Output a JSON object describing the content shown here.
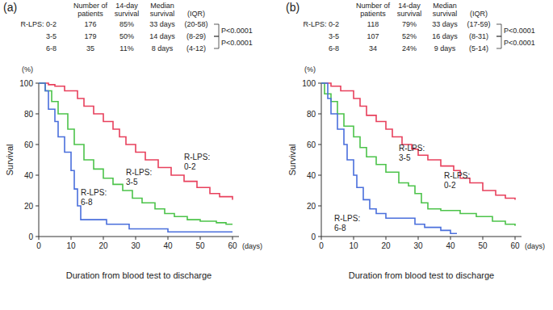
{
  "chart_data": [
    {
      "type": "line",
      "title": "(a)",
      "x_label": "Duration from blood test to discharge",
      "y_label": "Survival",
      "annotations": [
        "(%)",
        "(days)"
      ],
      "line_style": "step",
      "grid": false,
      "xlim": [
        0,
        62
      ],
      "ylim": [
        0,
        100
      ],
      "xticks": [
        0,
        10,
        20,
        30,
        40,
        50,
        60
      ],
      "yticks": [
        0,
        20,
        40,
        60,
        80,
        100
      ],
      "table": {
        "header": [
          "Number of patients",
          "14-day survival",
          "Median survival",
          "(IQR)"
        ],
        "rows": [
          [
            "R-LPS: 0-2",
            176,
            "85%",
            "33 days",
            "(20-58)"
          ],
          [
            "3-5",
            179,
            "50%",
            "14 days",
            "(8-29)"
          ],
          [
            "6-8",
            35,
            "11%",
            "8 days",
            "(4-12)"
          ]
        ],
        "p_values": [
          "P<0.0001",
          "P<0.0001"
        ]
      },
      "series": [
        {
          "name": "R-LPS: 0-2",
          "color": "#e8405c",
          "x": [
            0,
            3,
            5,
            8,
            12,
            14,
            17,
            20,
            23,
            25,
            27,
            30,
            33,
            37,
            41,
            45,
            49,
            53,
            56,
            60
          ],
          "values": [
            100,
            99,
            98,
            95,
            90,
            85,
            80,
            75,
            70,
            65,
            60,
            55,
            50,
            45,
            40,
            36,
            32,
            28,
            26,
            24
          ]
        },
        {
          "name": "R-LPS: 3-5",
          "color": "#4cc34a",
          "x": [
            0,
            2,
            4,
            6,
            9,
            11,
            14,
            17,
            20,
            23,
            26,
            29,
            32,
            36,
            39,
            42,
            46,
            50,
            55,
            58,
            60
          ],
          "values": [
            100,
            95,
            88,
            80,
            70,
            60,
            50,
            44,
            38,
            34,
            30,
            25,
            22,
            18,
            15,
            13,
            11,
            10,
            9,
            8,
            8
          ]
        },
        {
          "name": "R-LPS: 6-8",
          "color": "#4a6fdc",
          "x": [
            0,
            2,
            3,
            5,
            6,
            8,
            10,
            11,
            12,
            13,
            20,
            21,
            27,
            28,
            39,
            40,
            60
          ],
          "values": [
            100,
            95,
            83,
            75,
            65,
            55,
            43,
            31,
            20,
            11,
            11,
            8,
            8,
            5,
            5,
            3,
            3
          ]
        }
      ]
    },
    {
      "type": "line",
      "title": "(b)",
      "x_label": "Duration from blood test to discharge",
      "y_label": "Survival",
      "annotations": [
        "(%)",
        "(days)"
      ],
      "line_style": "step",
      "grid": false,
      "xlim": [
        0,
        62
      ],
      "ylim": [
        0,
        100
      ],
      "xticks": [
        0,
        10,
        20,
        30,
        40,
        50,
        60
      ],
      "yticks": [
        0,
        20,
        40,
        60,
        80,
        100
      ],
      "table": {
        "header": [
          "Number of patients",
          "14-day survival",
          "Median survival",
          "(IQR)"
        ],
        "rows": [
          [
            "R-LPS: 0-2",
            118,
            "79%",
            "33 days",
            "(17-59)"
          ],
          [
            "3-5",
            107,
            "52%",
            "16 days",
            "(8-31)"
          ],
          [
            "6-8",
            34,
            "24%",
            "9 days",
            "(5-14)"
          ]
        ],
        "p_values": [
          "P<0.0001",
          "P<0.0001"
        ]
      },
      "series": [
        {
          "name": "R-LPS: 0-2",
          "color": "#e8405c",
          "x": [
            0,
            3,
            6,
            10,
            12,
            14,
            17,
            20,
            22,
            25,
            28,
            30,
            33,
            37,
            41,
            43,
            46,
            50,
            54,
            57,
            60
          ],
          "values": [
            100,
            98,
            95,
            90,
            85,
            79,
            75,
            70,
            65,
            60,
            57,
            53,
            50,
            46,
            43,
            38,
            35,
            30,
            27,
            25,
            24
          ]
        },
        {
          "name": "R-LPS: 3-5",
          "color": "#4cc34a",
          "x": [
            0,
            1,
            3,
            5,
            7,
            10,
            12,
            14,
            17,
            20,
            24,
            27,
            29,
            31,
            33,
            37,
            43,
            48,
            53,
            57,
            60
          ],
          "values": [
            100,
            93,
            88,
            80,
            72,
            65,
            58,
            52,
            47,
            42,
            35,
            33,
            28,
            22,
            18,
            17,
            15,
            13,
            10,
            8,
            7
          ]
        },
        {
          "name": "R-LPS: 6-8",
          "color": "#4a6fdc",
          "x": [
            0,
            2,
            3,
            5,
            7,
            8,
            10,
            11,
            13,
            15,
            17,
            20,
            27,
            29,
            32,
            37,
            40,
            42
          ],
          "values": [
            100,
            90,
            80,
            70,
            60,
            50,
            40,
            32,
            24,
            18,
            15,
            12,
            12,
            8,
            6,
            4,
            2,
            2
          ]
        }
      ]
    }
  ]
}
